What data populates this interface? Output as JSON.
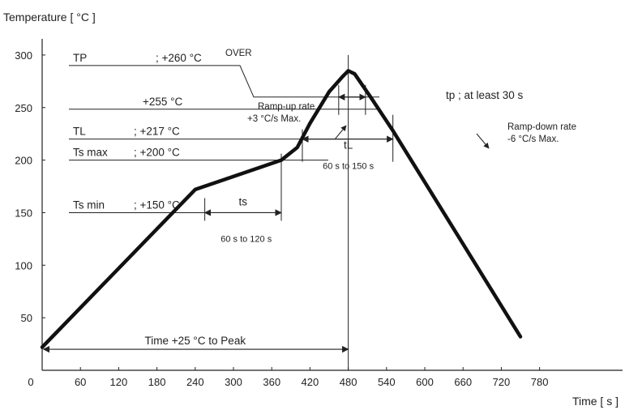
{
  "chart_data": {
    "type": "line",
    "ylabel": "Temperature [ °C ]",
    "xlabel": "Time [ s ]",
    "xlim": [
      0,
      780
    ],
    "ylim": [
      0,
      320
    ],
    "x_ticks": [
      0,
      60,
      120,
      180,
      240,
      300,
      360,
      420,
      480,
      540,
      600,
      660,
      720,
      780
    ],
    "y_ticks": [
      50,
      100,
      150,
      200,
      250,
      300
    ],
    "series": [
      {
        "points": [
          [
            0,
            22
          ],
          [
            240,
            172
          ],
          [
            375,
            200
          ],
          [
            400,
            212
          ],
          [
            420,
            235
          ],
          [
            450,
            265
          ],
          [
            472,
            280
          ],
          [
            480,
            285
          ],
          [
            490,
            282
          ],
          [
            515,
            260
          ],
          [
            550,
            228
          ],
          [
            750,
            32
          ]
        ]
      }
    ],
    "reference_lines": [
      {
        "label": "TP",
        "value_text": "; +260 °C",
        "extra": "OVER",
        "y": 290
      },
      {
        "label": "",
        "value_text": "+255 °C",
        "y": 260
      },
      {
        "label": "TL",
        "value_text": "; +217 °C",
        "y": 220
      },
      {
        "label": "Ts max",
        "value_text": "; +200 °C",
        "y": 200
      },
      {
        "label": "Ts min",
        "value_text": "; +150 °C",
        "y": 150
      }
    ],
    "annotations": {
      "ts": "ts",
      "ts_range": "60 s  to  120 s",
      "tL": "tL",
      "tL_range": "60 s  to  150 s",
      "tp": "tp ; at least 30 s",
      "ramp_up_1": "Ramp-up rate",
      "ramp_up_2": "+3 °C/s Max.",
      "ramp_down_1": "Ramp-down rate",
      "ramp_down_2": "-6 °C/s Max.",
      "time_to_peak": "Time +25 °C to Peak"
    },
    "grid": false,
    "legend": "none"
  }
}
